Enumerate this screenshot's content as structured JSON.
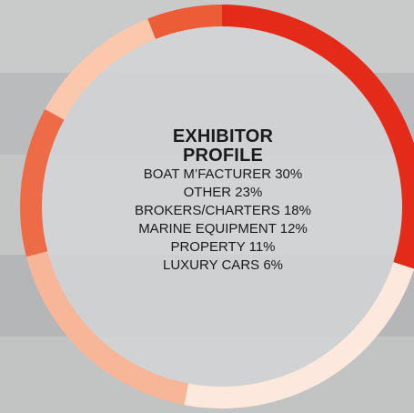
{
  "chart_data": {
    "type": "pie",
    "title": "EXHIBITOR PROFILE",
    "title_lines": [
      "EXHIBITOR",
      "PROFILE"
    ],
    "categories": [
      "BOAT M’FACTURER",
      "OTHER",
      "BROKERS/CHARTERS",
      "MARINE EQUIPMENT",
      "PROPERTY",
      "LUXURY CARS"
    ],
    "values": [
      30,
      23,
      18,
      12,
      11,
      6
    ],
    "labels": [
      "BOAT M’FACTURER 30%",
      "OTHER 23%",
      "BROKERS/CHARTERS 18%",
      "MARINE EQUIPMENT 12%",
      "PROPERTY 11%",
      "LUXURY CARS 6%"
    ],
    "colors": [
      "#e42a18",
      "#fde8de",
      "#f7b698",
      "#ee6b47",
      "#fbc8ae",
      "#ec5c36"
    ],
    "style": "donut"
  }
}
